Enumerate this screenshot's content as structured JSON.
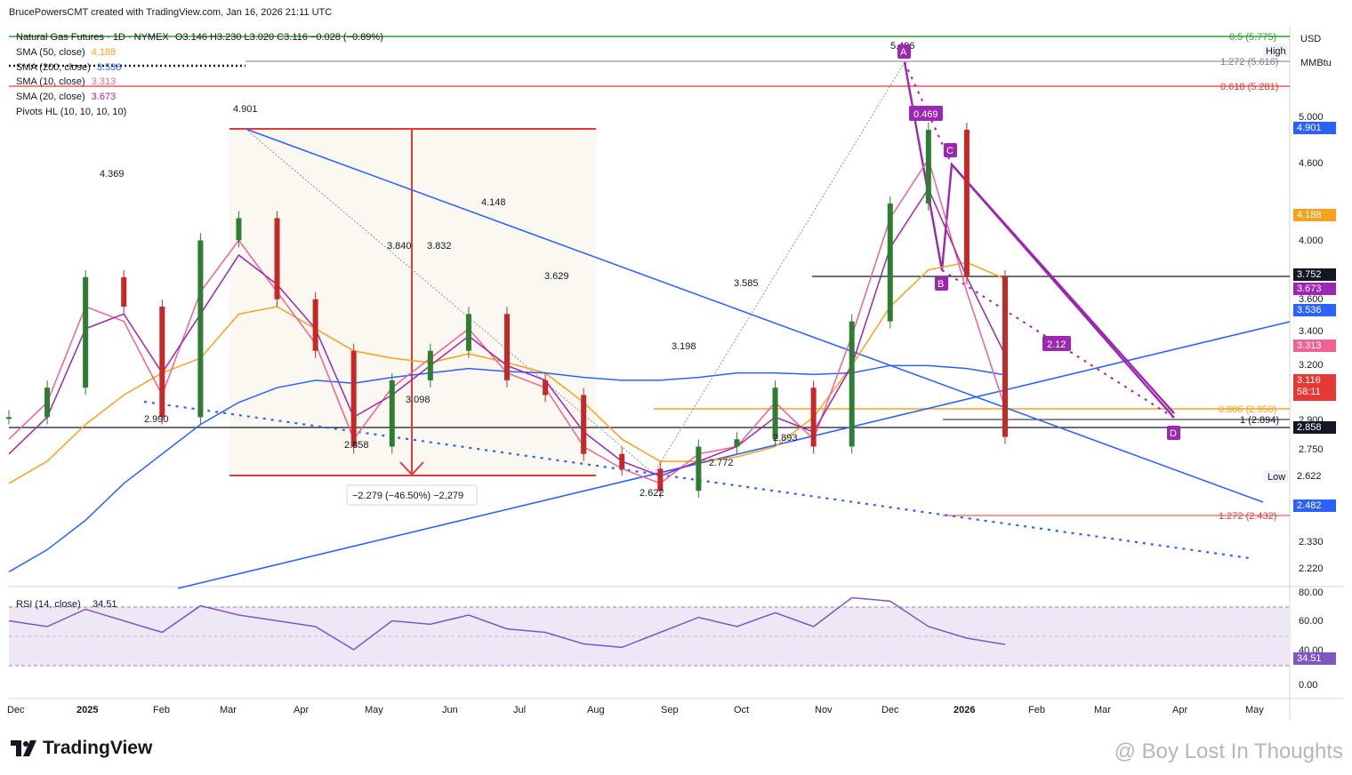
{
  "header": "BrucePowersCMT created with TradingView.com, Jan 16, 2026 21:11 UTC",
  "legend": {
    "title": "Natural Gas Futures · 1D · NYMEX",
    "ohlc": "O3.146 H3.230 L3.020 C3.116 −0.028 (−0.89%)",
    "sma50": {
      "label": "SMA (50, close)",
      "value": "4.188",
      "color": "#f7a21b"
    },
    "sma200": {
      "label": "SMA (200, close)",
      "value": "3.536",
      "color": "#2962ff"
    },
    "sma10": {
      "label": "SMA (10, close)",
      "value": "3.313",
      "color": "#f06292"
    },
    "sma20": {
      "label": "SMA (20, close)",
      "value": "3.673",
      "color": "#9c27b0"
    },
    "pivots": "Pivots HL (10, 10, 10, 10)"
  },
  "axis": {
    "currency": "USD",
    "unit": "MMBtu",
    "high_label": "High",
    "low_label": "Low",
    "ticks": [
      "5.000",
      "4.600",
      "4.000",
      "3.600",
      "3.400",
      "3.200",
      "2.900",
      "2.750",
      "2.330",
      "2.220"
    ],
    "months": [
      "Dec",
      "2025",
      "Feb",
      "Mar",
      "Apr",
      "May",
      "Jun",
      "Jul",
      "Aug",
      "Sep",
      "Oct",
      "Nov",
      "Dec",
      "2026",
      "Feb",
      "Mar",
      "Apr",
      "May"
    ],
    "rsi_ticks": [
      "80.00",
      "60.00",
      "40.00",
      "0.00"
    ]
  },
  "price_badges": [
    {
      "value": "4.901",
      "color": "#2962ff"
    },
    {
      "value": "4.188",
      "color": "#f7a21b"
    },
    {
      "value": "3.752",
      "color": "#131722"
    },
    {
      "value": "3.673",
      "color": "#9c27b0"
    },
    {
      "value": "3.536",
      "color": "#2962ff"
    },
    {
      "value": "3.313",
      "color": "#f06292"
    },
    {
      "value": "3.116",
      "color": "#e53935",
      "sub": "58:11"
    },
    {
      "value": "2.858",
      "color": "#131722"
    },
    {
      "value": "2.622",
      "color": "#ffffff"
    },
    {
      "value": "2.482",
      "color": "#2962ff"
    },
    {
      "value": "34.51",
      "color": "#7e57c2"
    }
  ],
  "fib_levels": [
    {
      "label": "0.5 (5.775)",
      "color": "#2ca02c"
    },
    {
      "label": "1.272 (5.616)",
      "color": "#787b86"
    },
    {
      "label": "0.618 (5.281)",
      "color": "#e53935"
    },
    {
      "label": "0.886 (2.950)",
      "color": "#f7a21b"
    },
    {
      "label": "1 (2.894)",
      "color": "#131722"
    },
    {
      "label": "1.272 (2.432)",
      "color": "#e53935"
    }
  ],
  "pivot_labels": [
    "4.901",
    "4.369",
    "2.990",
    "3.840",
    "3.832",
    "4.148",
    "3.098",
    "2.858",
    "3.629",
    "3.585",
    "3.198",
    "2.772",
    "2.893",
    "2.622",
    "5.496"
  ],
  "pattern_labels": [
    "A",
    "B",
    "C",
    "D"
  ],
  "ratio_labels": [
    "0.469",
    "2.12"
  ],
  "measure_label": "−2.279 (−46.50%) −2,279",
  "rsi": {
    "label": "RSI (14, close)",
    "value": "34.51"
  },
  "brand": "TradingView",
  "watermark": "@ Boy Lost In Thoughts",
  "chart_data": {
    "type": "line",
    "title": "Natural Gas Futures · 1D · NYMEX",
    "xlabel": "",
    "ylabel": "USD / MMBtu",
    "ylim": [
      2.1,
      5.9
    ],
    "x": [
      "2024-12-15",
      "2025-01-01",
      "2025-01-15",
      "2025-02-01",
      "2025-02-15",
      "2025-03-01",
      "2025-03-15",
      "2025-04-01",
      "2025-04-15",
      "2025-05-01",
      "2025-05-15",
      "2025-06-01",
      "2025-06-15",
      "2025-07-01",
      "2025-07-15",
      "2025-08-01",
      "2025-08-15",
      "2025-09-01",
      "2025-09-15",
      "2025-10-01",
      "2025-10-15",
      "2025-11-01",
      "2025-11-15",
      "2025-12-01",
      "2025-12-15",
      "2026-01-01",
      "2026-01-16"
    ],
    "series": [
      {
        "name": "Natural Gas Futures",
        "values": [
          3.25,
          3.45,
          4.2,
          4.0,
          3.25,
          4.45,
          4.6,
          4.05,
          3.7,
          3.05,
          3.5,
          3.7,
          3.95,
          3.5,
          3.4,
          3.0,
          2.9,
          2.75,
          3.05,
          3.1,
          3.45,
          3.05,
          3.9,
          4.7,
          5.2,
          4.2,
          3.116
        ]
      },
      {
        "name": "SMA (50, close)",
        "values": [
          2.8,
          2.95,
          3.2,
          3.4,
          3.55,
          3.65,
          3.95,
          4.0,
          3.85,
          3.7,
          3.65,
          3.62,
          3.68,
          3.62,
          3.55,
          3.35,
          3.1,
          2.95,
          2.95,
          2.98,
          3.05,
          3.25,
          3.6,
          4.0,
          4.25,
          4.3,
          4.188
        ]
      },
      {
        "name": "SMA (200, close)",
        "values": [
          2.2,
          2.35,
          2.55,
          2.8,
          3.0,
          3.2,
          3.35,
          3.45,
          3.5,
          3.48,
          3.52,
          3.55,
          3.58,
          3.56,
          3.55,
          3.52,
          3.5,
          3.5,
          3.52,
          3.55,
          3.55,
          3.54,
          3.55,
          3.6,
          3.6,
          3.58,
          3.536
        ]
      },
      {
        "name": "SMA (10, close)",
        "values": [
          3.1,
          3.35,
          4.0,
          3.9,
          3.4,
          4.1,
          4.45,
          4.1,
          3.75,
          3.1,
          3.45,
          3.65,
          3.85,
          3.55,
          3.45,
          3.05,
          2.9,
          2.8,
          3.0,
          3.05,
          3.35,
          3.1,
          3.8,
          4.6,
          5.0,
          4.1,
          3.313
        ]
      },
      {
        "name": "SMA (20, close)",
        "values": [
          3.0,
          3.25,
          3.85,
          3.95,
          3.55,
          3.95,
          4.35,
          4.15,
          3.85,
          3.25,
          3.4,
          3.6,
          3.8,
          3.6,
          3.5,
          3.15,
          2.95,
          2.85,
          2.95,
          3.05,
          3.25,
          3.15,
          3.6,
          4.4,
          4.8,
          4.2,
          3.673
        ]
      }
    ],
    "rsi": {
      "name": "RSI (14, close)",
      "ylim": [
        0,
        80
      ],
      "values": [
        55,
        50,
        65,
        55,
        45,
        68,
        60,
        55,
        50,
        30,
        55,
        52,
        60,
        48,
        45,
        35,
        32,
        45,
        58,
        50,
        62,
        50,
        75,
        72,
        50,
        40,
        34.51
      ]
    }
  }
}
